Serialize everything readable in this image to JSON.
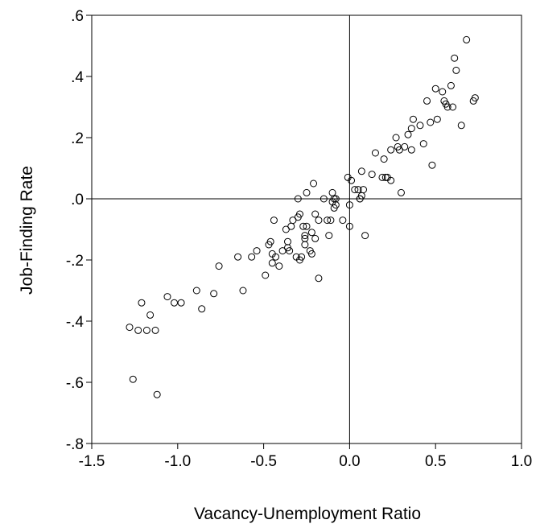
{
  "chart_data": {
    "type": "scatter",
    "title": "",
    "xlabel": "Vacancy-Unemployment Ratio",
    "ylabel": "Job-Finding Rate",
    "xlim": [
      -1.5,
      1.0
    ],
    "ylim": [
      -0.8,
      0.6
    ],
    "x_ticks": [
      -1.5,
      -1.0,
      -0.5,
      0.0,
      0.5,
      1.0
    ],
    "x_tick_labels": [
      "-1.5",
      "-1.0",
      "-0.5",
      "0.0",
      "0.5",
      "1.0"
    ],
    "y_ticks": [
      -0.8,
      -0.6,
      -0.4,
      -0.2,
      0.0,
      0.2,
      0.4,
      0.6
    ],
    "y_tick_labels": [
      "-.8",
      "-.6",
      "-.4",
      "-.2",
      ".0",
      ".2",
      ".4",
      ".6"
    ],
    "reference_lines": {
      "x": 0.0,
      "y": 0.0
    },
    "grid": false,
    "marker": "hollow-circle",
    "colors": {
      "marker": "#000000",
      "axis": "#000000",
      "background": "#ffffff"
    },
    "points": [
      [
        -1.28,
        -0.42
      ],
      [
        -1.26,
        -0.59
      ],
      [
        -1.23,
        -0.43
      ],
      [
        -1.21,
        -0.34
      ],
      [
        -1.18,
        -0.43
      ],
      [
        -1.16,
        -0.38
      ],
      [
        -1.13,
        -0.43
      ],
      [
        -1.12,
        -0.64
      ],
      [
        -1.06,
        -0.32
      ],
      [
        -1.02,
        -0.34
      ],
      [
        -0.98,
        -0.34
      ],
      [
        -0.89,
        -0.3
      ],
      [
        -0.86,
        -0.36
      ],
      [
        -0.79,
        -0.31
      ],
      [
        -0.76,
        -0.22
      ],
      [
        -0.65,
        -0.19
      ],
      [
        -0.62,
        -0.3
      ],
      [
        -0.57,
        -0.19
      ],
      [
        -0.54,
        -0.17
      ],
      [
        -0.49,
        -0.25
      ],
      [
        -0.47,
        -0.15
      ],
      [
        -0.46,
        -0.14
      ],
      [
        -0.45,
        -0.21
      ],
      [
        -0.45,
        -0.18
      ],
      [
        -0.44,
        -0.07
      ],
      [
        -0.43,
        -0.19
      ],
      [
        -0.41,
        -0.22
      ],
      [
        -0.39,
        -0.17
      ],
      [
        -0.37,
        -0.1
      ],
      [
        -0.36,
        -0.16
      ],
      [
        -0.36,
        -0.14
      ],
      [
        -0.35,
        -0.17
      ],
      [
        -0.34,
        -0.09
      ],
      [
        -0.33,
        -0.07
      ],
      [
        -0.31,
        -0.19
      ],
      [
        -0.3,
        0.0
      ],
      [
        -0.3,
        -0.06
      ],
      [
        -0.29,
        -0.05
      ],
      [
        -0.29,
        -0.2
      ],
      [
        -0.28,
        -0.19
      ],
      [
        -0.27,
        -0.09
      ],
      [
        -0.26,
        -0.13
      ],
      [
        -0.26,
        -0.12
      ],
      [
        -0.26,
        -0.15
      ],
      [
        -0.25,
        -0.09
      ],
      [
        -0.25,
        0.02
      ],
      [
        -0.23,
        -0.17
      ],
      [
        -0.22,
        -0.18
      ],
      [
        -0.22,
        -0.11
      ],
      [
        -0.21,
        0.05
      ],
      [
        -0.2,
        -0.13
      ],
      [
        -0.2,
        -0.05
      ],
      [
        -0.18,
        -0.26
      ],
      [
        -0.18,
        -0.07
      ],
      [
        -0.15,
        0.0
      ],
      [
        -0.13,
        -0.07
      ],
      [
        -0.12,
        -0.12
      ],
      [
        -0.11,
        -0.07
      ],
      [
        -0.1,
        0.02
      ],
      [
        -0.1,
        -0.01
      ],
      [
        -0.09,
        0.0
      ],
      [
        -0.09,
        -0.03
      ],
      [
        -0.08,
        -0.02
      ],
      [
        -0.08,
        0.0
      ],
      [
        -0.04,
        -0.07
      ],
      [
        -0.01,
        0.07
      ],
      [
        0.0,
        -0.02
      ],
      [
        0.0,
        -0.09
      ],
      [
        0.01,
        0.06
      ],
      [
        0.03,
        0.03
      ],
      [
        0.05,
        0.03
      ],
      [
        0.06,
        0.0
      ],
      [
        0.06,
        0.0
      ],
      [
        0.07,
        0.01
      ],
      [
        0.07,
        0.09
      ],
      [
        0.08,
        0.03
      ],
      [
        0.09,
        -0.12
      ],
      [
        0.13,
        0.08
      ],
      [
        0.15,
        0.15
      ],
      [
        0.19,
        0.07
      ],
      [
        0.2,
        0.13
      ],
      [
        0.21,
        0.07
      ],
      [
        0.22,
        0.07
      ],
      [
        0.24,
        0.16
      ],
      [
        0.24,
        0.06
      ],
      [
        0.27,
        0.2
      ],
      [
        0.28,
        0.17
      ],
      [
        0.29,
        0.16
      ],
      [
        0.3,
        0.02
      ],
      [
        0.32,
        0.17
      ],
      [
        0.34,
        0.21
      ],
      [
        0.36,
        0.16
      ],
      [
        0.36,
        0.23
      ],
      [
        0.37,
        0.26
      ],
      [
        0.41,
        0.24
      ],
      [
        0.43,
        0.18
      ],
      [
        0.45,
        0.32
      ],
      [
        0.47,
        0.25
      ],
      [
        0.48,
        0.11
      ],
      [
        0.5,
        0.36
      ],
      [
        0.51,
        0.26
      ],
      [
        0.54,
        0.35
      ],
      [
        0.55,
        0.32
      ],
      [
        0.56,
        0.31
      ],
      [
        0.57,
        0.3
      ],
      [
        0.59,
        0.37
      ],
      [
        0.6,
        0.3
      ],
      [
        0.61,
        0.46
      ],
      [
        0.62,
        0.42
      ],
      [
        0.65,
        0.24
      ],
      [
        0.68,
        0.52
      ],
      [
        0.72,
        0.32
      ],
      [
        0.73,
        0.33
      ]
    ]
  }
}
